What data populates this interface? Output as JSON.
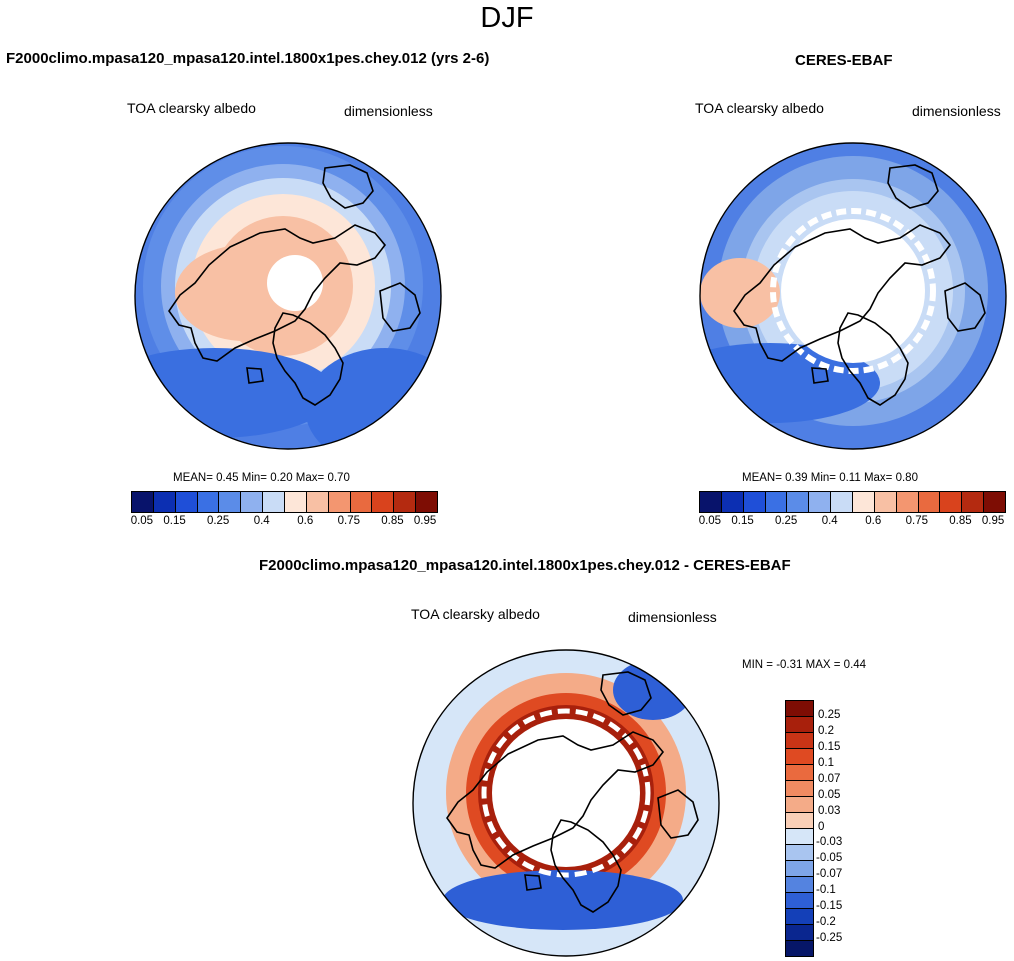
{
  "season": "DJF",
  "panels": [
    {
      "title": "F2000climo.mpasa120_mpasa120.intel.1800x1pes.chey.012 (yrs 2-6)",
      "variable": "TOA clearsky albedo",
      "units": "dimensionless",
      "stats": {
        "mean_label": "MEAN=",
        "mean": "0.45",
        "min_label": "Min=",
        "min": "0.20",
        "max_label": "Max=",
        "max": "0.70"
      }
    },
    {
      "title": "CERES-EBAF",
      "variable": "TOA clearsky albedo",
      "units": "dimensionless",
      "stats": {
        "mean_label": "MEAN=",
        "mean": "0.39",
        "min_label": "Min=",
        "min": "0.11",
        "max_label": "Max=",
        "max": "0.80"
      }
    },
    {
      "title": "F2000climo.mpasa120_mpasa120.intel.1800x1pes.chey.012 - CERES-EBAF",
      "variable": "TOA clearsky albedo",
      "units": "dimensionless",
      "stats": {
        "min_label": "MIN =",
        "min": "-0.31",
        "max_label": "MAX =",
        "max": "0.44"
      }
    }
  ],
  "chart_data": [
    {
      "type": "heatmap",
      "projection": "north polar stereographic",
      "title": "F2000climo.mpasa120_mpasa120.intel.1800x1pes.chey.012 (yrs 2-6)",
      "field": "TOA clearsky albedo",
      "units": "dimensionless",
      "mean": 0.45,
      "min": 0.2,
      "max": 0.7,
      "colorbar_ticks": [
        "0.05",
        "0.15",
        "0.25",
        "0.4",
        "0.6",
        "0.75",
        "0.85",
        "0.95"
      ],
      "colorbar_colors": [
        "#08136b",
        "#0c2fb2",
        "#1f4fd8",
        "#3a70e4",
        "#5b8ce8",
        "#8fb1ef",
        "#c9dcf6",
        "#fde6d8",
        "#f8c0a4",
        "#f39670",
        "#e96a3f",
        "#d9431d",
        "#b42a10",
        "#7e0d04"
      ]
    },
    {
      "type": "heatmap",
      "projection": "north polar stereographic",
      "title": "CERES-EBAF",
      "field": "TOA clearsky albedo",
      "units": "dimensionless",
      "mean": 0.39,
      "min": 0.11,
      "max": 0.8,
      "colorbar_ticks": [
        "0.05",
        "0.15",
        "0.25",
        "0.4",
        "0.6",
        "0.75",
        "0.85",
        "0.95"
      ],
      "colorbar_colors": [
        "#08136b",
        "#0c2fb2",
        "#1f4fd8",
        "#3a70e4",
        "#5b8ce8",
        "#8fb1ef",
        "#c9dcf6",
        "#fde6d8",
        "#f8c0a4",
        "#f39670",
        "#e96a3f",
        "#d9431d",
        "#b42a10",
        "#7e0d04"
      ]
    },
    {
      "type": "heatmap",
      "projection": "north polar stereographic",
      "title": "F2000climo.mpasa120_mpasa120.intel.1800x1pes.chey.012 - CERES-EBAF",
      "field": "TOA clearsky albedo",
      "units": "dimensionless",
      "min": -0.31,
      "max": 0.44,
      "colorbar_ticks": [
        "0.25",
        "0.2",
        "0.15",
        "0.1",
        "0.07",
        "0.05",
        "0.03",
        "0",
        "-0.03",
        "-0.05",
        "-0.07",
        "-0.1",
        "-0.15",
        "-0.2",
        "-0.25"
      ],
      "colorbar_colors": [
        "#7e0d04",
        "#a8200c",
        "#c93416",
        "#df4a22",
        "#ea6a3e",
        "#f08b62",
        "#f4ab88",
        "#f9cfb7",
        "#d6e6f8",
        "#a9c5f0",
        "#7ea5e8",
        "#5483e0",
        "#2e5fd6",
        "#1440b8",
        "#0a268f",
        "#061668"
      ]
    }
  ]
}
